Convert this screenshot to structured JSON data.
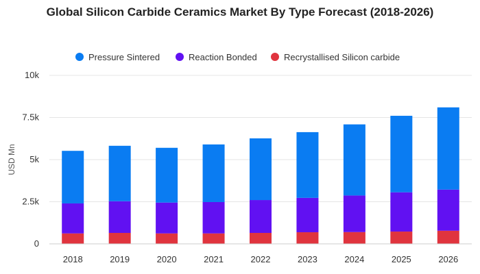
{
  "chart_data": {
    "type": "bar",
    "stacked": true,
    "title": "Global Silicon Carbide Ceramics Market By Type Forecast (2018-2026)",
    "ylabel": "USD Mn",
    "xlabel": "",
    "categories": [
      "2018",
      "2019",
      "2020",
      "2021",
      "2022",
      "2023",
      "2024",
      "2025",
      "2026"
    ],
    "ylim": [
      0,
      10000
    ],
    "y_ticks": [
      0,
      2500,
      5000,
      7500,
      10000
    ],
    "y_tick_labels": [
      "0",
      "2.5k",
      "5k",
      "7.5k",
      "10k"
    ],
    "grid": true,
    "legend_position": "top",
    "series": [
      {
        "name": "Recrystallised Silicon carbide",
        "color": "#e0343e",
        "values": [
          620,
          650,
          620,
          620,
          650,
          690,
          700,
          730,
          780
        ]
      },
      {
        "name": "Reaction Bonded",
        "color": "#6111f2",
        "values": [
          1780,
          1880,
          1830,
          1860,
          1950,
          2040,
          2170,
          2330,
          2440
        ]
      },
      {
        "name": "Pressure Sintered",
        "color": "#0a7cf2",
        "values": [
          3120,
          3290,
          3250,
          3420,
          3660,
          3900,
          4220,
          4540,
          4880
        ]
      }
    ],
    "legend_order": [
      "Pressure Sintered",
      "Reaction Bonded",
      "Recrystallised Silicon carbide"
    ]
  }
}
